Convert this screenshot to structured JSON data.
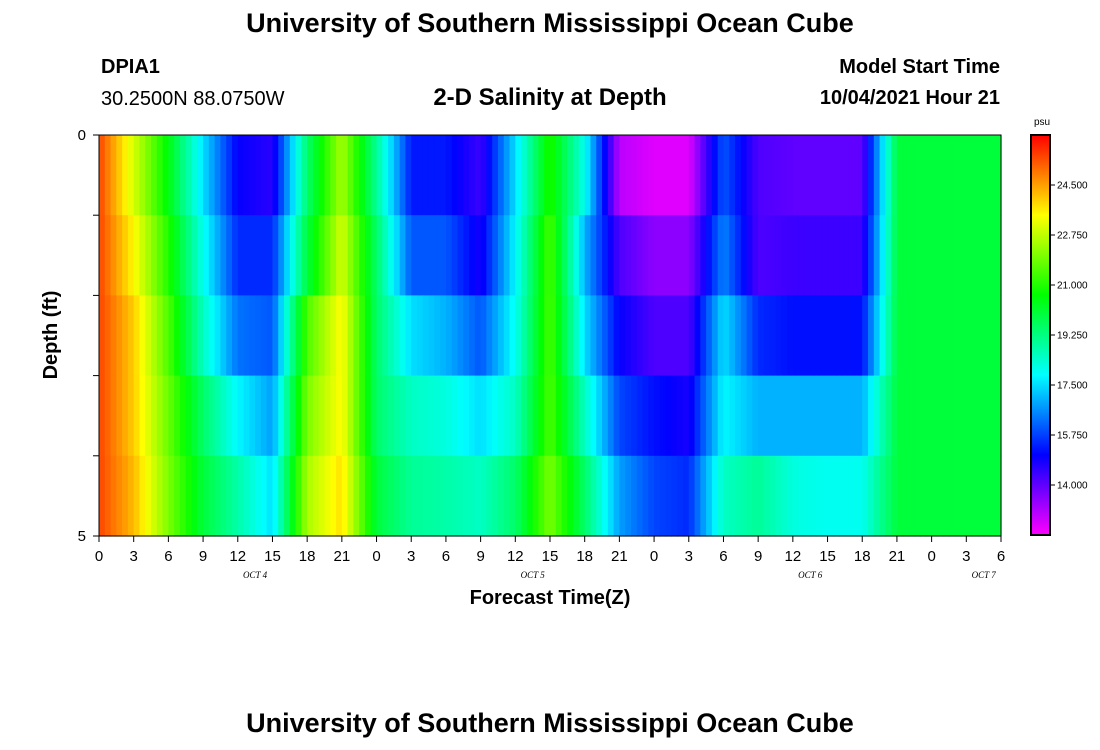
{
  "header": {
    "title_top": "University of Southern Mississippi Ocean Cube",
    "title_bottom": "University of Southern Mississippi Ocean Cube",
    "station_id": "DPIA1",
    "station_coords": "30.2500N  88.0750W",
    "model_start_label": "Model Start Time",
    "model_start_value": "10/04/2021 Hour 21",
    "chart_title": "2-D Salinity at Depth"
  },
  "chart_data": {
    "type": "heatmap",
    "title": "2-D Salinity at Depth",
    "xlabel": "Forecast Time(Z)",
    "ylabel": "Depth (ft)",
    "y_tick_labels": [
      "0",
      "5"
    ],
    "ylim": [
      0,
      5
    ],
    "y_reversed": true,
    "x_tick_labels": [
      "0",
      "3",
      "6",
      "9",
      "12",
      "15",
      "18",
      "21",
      "0",
      "3",
      "6",
      "9",
      "12",
      "15",
      "18",
      "21",
      "0",
      "3",
      "6",
      "9",
      "12",
      "15",
      "18",
      "21",
      "0",
      "3",
      "6"
    ],
    "x_date_labels": [
      {
        "label": "OCT 4",
        "at_tick": 4.5
      },
      {
        "label": "OCT 5",
        "at_tick": 12.5
      },
      {
        "label": "OCT 6",
        "at_tick": 20.5
      },
      {
        "label": "OCT 7",
        "at_tick": 25.5
      }
    ],
    "colorbar": {
      "unit": "psu",
      "min": 12.25,
      "max": 26.25,
      "tick_labels": [
        "14.000",
        "15.750",
        "17.500",
        "19.250",
        "21.000",
        "22.750",
        "24.500"
      ],
      "tick_values": [
        14.0,
        15.75,
        17.5,
        19.25,
        21.0,
        22.75,
        24.5
      ],
      "colormap": "rainbow (magenta-blue-cyan-green-yellow-orange-red)"
    },
    "hour_columns": [
      0,
      3,
      6,
      9,
      12,
      15,
      18,
      21,
      24,
      27,
      30,
      33,
      36,
      39,
      42,
      45,
      48,
      51,
      54,
      57,
      60,
      63,
      66,
      69,
      72,
      75,
      78
    ],
    "depth_layers": 5,
    "values": [
      [
        25.5,
        23.0,
        20.5,
        17.5,
        15.0,
        14.6,
        19.5,
        22.5,
        19.0,
        15.3,
        15.3,
        14.4,
        17.5,
        21.0,
        18.0,
        13.0,
        12.6,
        12.6,
        16.0,
        14.2,
        14.0,
        14.0,
        14.0,
        20.0,
        20.0,
        20.0,
        20.0
      ],
      [
        25.5,
        23.5,
        21.0,
        18.0,
        15.5,
        15.5,
        20.0,
        23.0,
        19.5,
        16.0,
        16.0,
        14.8,
        17.8,
        21.5,
        17.0,
        14.2,
        13.5,
        13.5,
        16.5,
        14.2,
        14.4,
        14.4,
        14.4,
        20.0,
        20.0,
        20.0,
        20.0
      ],
      [
        25.5,
        24.0,
        21.5,
        18.5,
        16.3,
        16.0,
        21.5,
        23.5,
        19.5,
        17.5,
        17.0,
        16.0,
        18.0,
        21.5,
        17.5,
        15.0,
        14.2,
        14.2,
        17.5,
        15.5,
        15.2,
        15.2,
        15.2,
        20.0,
        20.0,
        20.0,
        20.0
      ],
      [
        25.5,
        24.0,
        21.8,
        19.5,
        17.8,
        16.8,
        22.0,
        23.5,
        19.5,
        18.5,
        18.2,
        17.5,
        18.5,
        21.5,
        18.5,
        15.8,
        15.2,
        14.8,
        17.8,
        17.0,
        17.0,
        17.0,
        17.0,
        20.0,
        20.0,
        20.0,
        20.0
      ],
      [
        25.5,
        24.2,
        22.0,
        20.0,
        18.8,
        17.5,
        22.5,
        23.8,
        20.0,
        19.0,
        18.8,
        18.5,
        19.5,
        22.0,
        19.5,
        16.8,
        15.8,
        15.5,
        18.5,
        19.0,
        18.2,
        18.0,
        18.0,
        20.0,
        20.0,
        20.0,
        20.0
      ]
    ]
  }
}
